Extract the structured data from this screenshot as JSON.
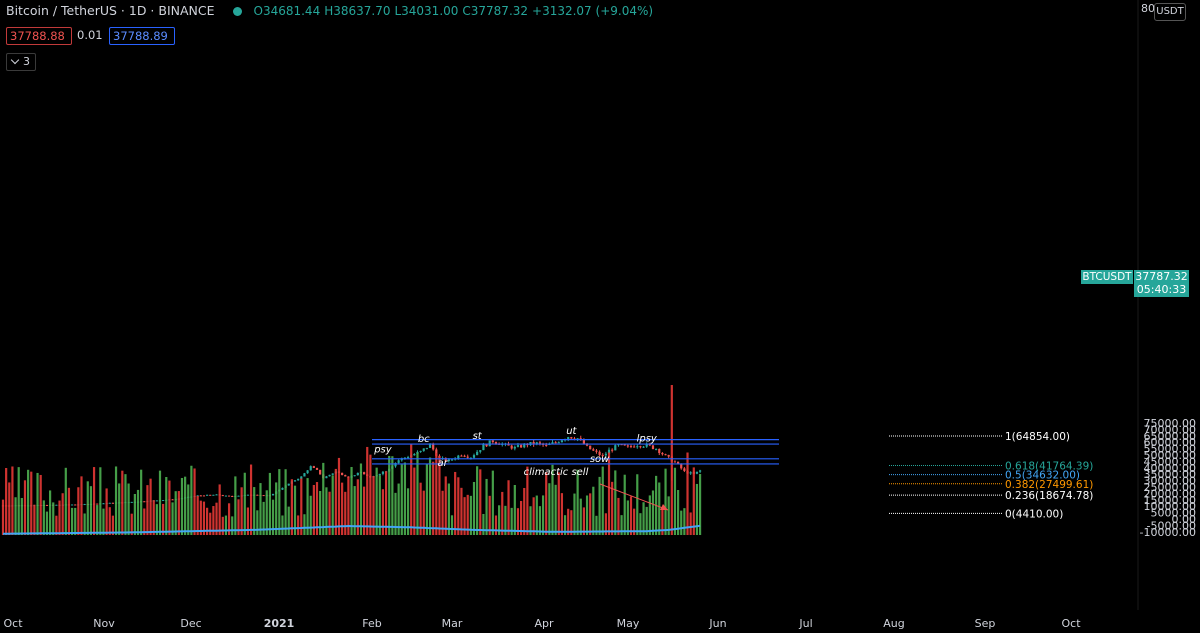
{
  "header": {
    "symbol": "Bitcoin / TetherUS · 1D · BINANCE",
    "open": "O34681.44",
    "high": "H38637.70",
    "low": "L34031.00",
    "close": "C37787.32",
    "change": "+3132.07 (+9.04%)"
  },
  "trade": {
    "bid": "37788.88",
    "spread": "0.01",
    "ask": "37788.89"
  },
  "indicator_count": "3",
  "currency": "USDT",
  "last_price": {
    "symbol": "BTCUSDT",
    "price": "37787.32",
    "countdown": "05:40:33"
  },
  "colors": {
    "up": "#26a69a",
    "down": "#ef5350",
    "vol_up": "#4caf50",
    "vol_down": "#e53935",
    "ma": "#42a5f5",
    "level": "#2962ff"
  },
  "chart_data": {
    "type": "candlestick",
    "x_labels": [
      "Oct",
      "Nov",
      "Dec",
      "2021",
      "Feb",
      "Mar",
      "Apr",
      "May",
      "Jun",
      "Jul",
      "Aug",
      "Sep",
      "Oct"
    ],
    "y_ticks": [
      "75000.00",
      "70000.00",
      "65000.00",
      "60000.00",
      "55000.00",
      "50000.00",
      "45000.00",
      "40000.00",
      "35000.00",
      "30000.00",
      "25000.00",
      "20000.00",
      "15000.00",
      "10000.00",
      "5000.00",
      "0.00",
      "-5000.00",
      "-10000.00"
    ],
    "y_tick_values": [
      75000,
      70000,
      65000,
      60000,
      55000,
      50000,
      45000,
      40000,
      35000,
      30000,
      25000,
      20000,
      15000,
      10000,
      5000,
      0,
      -5000,
      -10000
    ],
    "price_keypoints": [
      [
        0,
        10600
      ],
      [
        12,
        10800
      ],
      [
        25,
        11500
      ],
      [
        40,
        13200
      ],
      [
        55,
        15500
      ],
      [
        62,
        18300
      ],
      [
        68,
        19000
      ],
      [
        72,
        17800
      ],
      [
        80,
        19100
      ],
      [
        85,
        18200
      ],
      [
        88,
        23000
      ],
      [
        92,
        29000
      ],
      [
        95,
        33000
      ],
      [
        98,
        41000
      ],
      [
        100,
        38000
      ],
      [
        102,
        32000
      ],
      [
        106,
        37000
      ],
      [
        110,
        32500
      ],
      [
        114,
        36500
      ],
      [
        117,
        32000
      ],
      [
        122,
        38000
      ],
      [
        126,
        46000
      ],
      [
        129,
        49000
      ],
      [
        133,
        52500
      ],
      [
        136,
        58000
      ],
      [
        139,
        47000
      ],
      [
        142,
        45500
      ],
      [
        146,
        50500
      ],
      [
        149,
        48500
      ],
      [
        153,
        57000
      ],
      [
        156,
        61000
      ],
      [
        160,
        57500
      ],
      [
        163,
        55500
      ],
      [
        167,
        58500
      ],
      [
        170,
        59000
      ],
      [
        173,
        57000
      ],
      [
        176,
        60000
      ],
      [
        180,
        64500
      ],
      [
        183,
        63000
      ],
      [
        186,
        56000
      ],
      [
        188,
        53000
      ],
      [
        191,
        49000
      ],
      [
        193,
        53500
      ],
      [
        196,
        57500
      ],
      [
        199,
        56000
      ],
      [
        202,
        58000
      ],
      [
        205,
        57500
      ],
      [
        208,
        55000
      ],
      [
        211,
        49000
      ],
      [
        214,
        44500
      ],
      [
        217,
        37000
      ],
      [
        220,
        35000
      ],
      [
        222,
        37800
      ]
    ],
    "volume_spikes": [
      [
        193,
        0.55
      ],
      [
        213,
        1.0
      ],
      [
        218,
        0.55
      ],
      [
        209,
        0.35
      ],
      [
        215,
        0.3
      ]
    ],
    "volume_ma_keypoints": [
      [
        0,
        -11500
      ],
      [
        40,
        -10500
      ],
      [
        80,
        -8500
      ],
      [
        110,
        -5500
      ],
      [
        130,
        -6500
      ],
      [
        150,
        -8500
      ],
      [
        175,
        -10000
      ],
      [
        205,
        -9500
      ],
      [
        212,
        -8500
      ],
      [
        222,
        -5300
      ]
    ],
    "horizontal_levels": [
      62000,
      58500,
      47000,
      43000
    ],
    "annotations": [
      "psy",
      "bc",
      "ar",
      "st",
      "ut",
      "lpsy",
      "sow",
      "climactic sell"
    ],
    "annotation_points": [
      [
        121,
        52000
      ],
      [
        134,
        60000
      ],
      [
        140,
        41500
      ],
      [
        151,
        62600
      ],
      [
        181,
        66500
      ],
      [
        205,
        60500
      ],
      [
        190,
        44500
      ]
    ],
    "fib_labels": [
      "1(64854.00)",
      "0.618(41764.39)",
      "0.5(34632.00)",
      "0.382(27499.61)",
      "0.236(18674.78)",
      "0(4410.00)"
    ],
    "fib_values": [
      64854,
      41764.39,
      34632,
      27499.61,
      18674.78,
      4410
    ],
    "fib_colors": [
      "#ffffff",
      "#26a69a",
      "#42a5f5",
      "#ff9800",
      "#ffffff",
      "#ffffff"
    ]
  }
}
